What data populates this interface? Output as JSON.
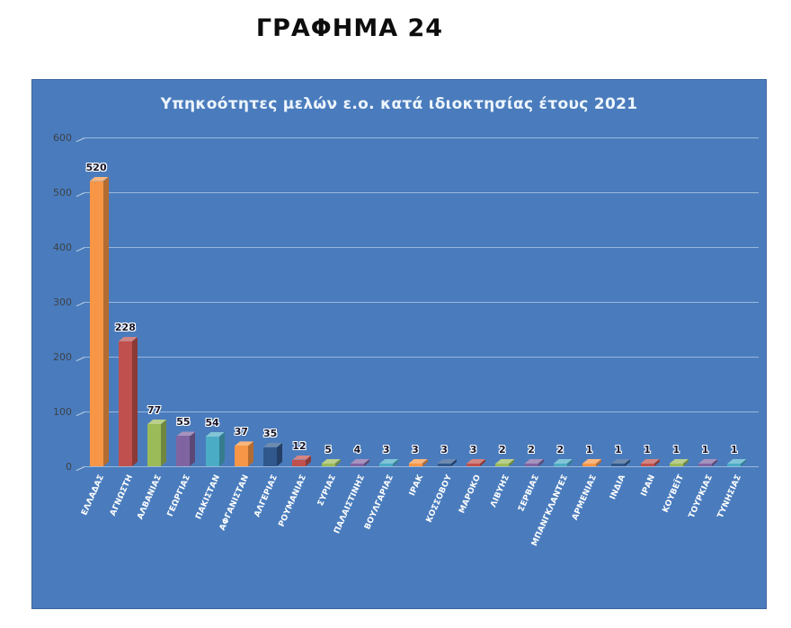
{
  "page": {
    "title": "ΓΡΑΦΗΜΑ 24"
  },
  "chart_data": {
    "type": "bar",
    "style": "3d-column",
    "title": "Υπηκοότητες μελών ε.ο. κατά ιδιοκτησίας έτους 2021",
    "categories": [
      "ΕΛΛΑΔΑΣ",
      "ΑΓΝΩΣΤΗ",
      "ΑΛΒΑΝΙΑΣ",
      "ΓΕΩΡΓΙΑΣ",
      "ΠΑΚΙΣΤΑΝ",
      "ΑΦΓΑΝΙΣΤΑΝ",
      "ΑΛΓΕΡΙΑΣ",
      "ΡΟΥΜΑΝΙΑΣ",
      "ΣΥΡΙΑΣ",
      "ΠΑΛΑΙΣΤΙΝΗΣ",
      "ΒΟΥΛΓΑΡΙΑΣ",
      "ΙΡΑΚ",
      "ΚΟΣΣΟΒΟΥ",
      "ΜΑΡΟΚΟ",
      "ΛΙΒΥΗΣ",
      "ΣΕΡΒΙΑΣ",
      "ΜΠΑΝΓΚΛΑΝΤΕΣ",
      "ΑΡΜΕΝΙΑΣ",
      "ΙΝΔΙΑ",
      "ΙΡΑΝ",
      "ΚΟΥΒΕΪΤ",
      "ΤΟΥΡΚΙΑΣ",
      "ΤΥΝΗΣΙΑΣ"
    ],
    "values": [
      520,
      228,
      77,
      55,
      54,
      37,
      35,
      12,
      5,
      4,
      3,
      3,
      3,
      3,
      2,
      2,
      2,
      1,
      1,
      1,
      1,
      1,
      1
    ],
    "bar_colors": [
      "#F79646",
      "#C0504D",
      "#9BBB59",
      "#8064A2",
      "#4BACC6",
      "#F79646",
      "#30588C",
      "#C0504D",
      "#9BBB59",
      "#8064A2",
      "#4BACC6",
      "#F79646",
      "#30588C",
      "#C0504D",
      "#9BBB59",
      "#8064A2",
      "#4BACC6",
      "#F79646",
      "#30588C",
      "#C0504D",
      "#9BBB59",
      "#8064A2",
      "#4BACC6"
    ],
    "xlabel": "",
    "ylabel": "",
    "ylim": [
      0,
      600
    ],
    "yticks": [
      0,
      100,
      200,
      300,
      400,
      500,
      600
    ],
    "grid": true,
    "legend": "none",
    "background_color": "#4a7cbd",
    "title_color": "#eef5fc",
    "category_label_color": "#ffffff",
    "value_label_color": "#14142b"
  }
}
